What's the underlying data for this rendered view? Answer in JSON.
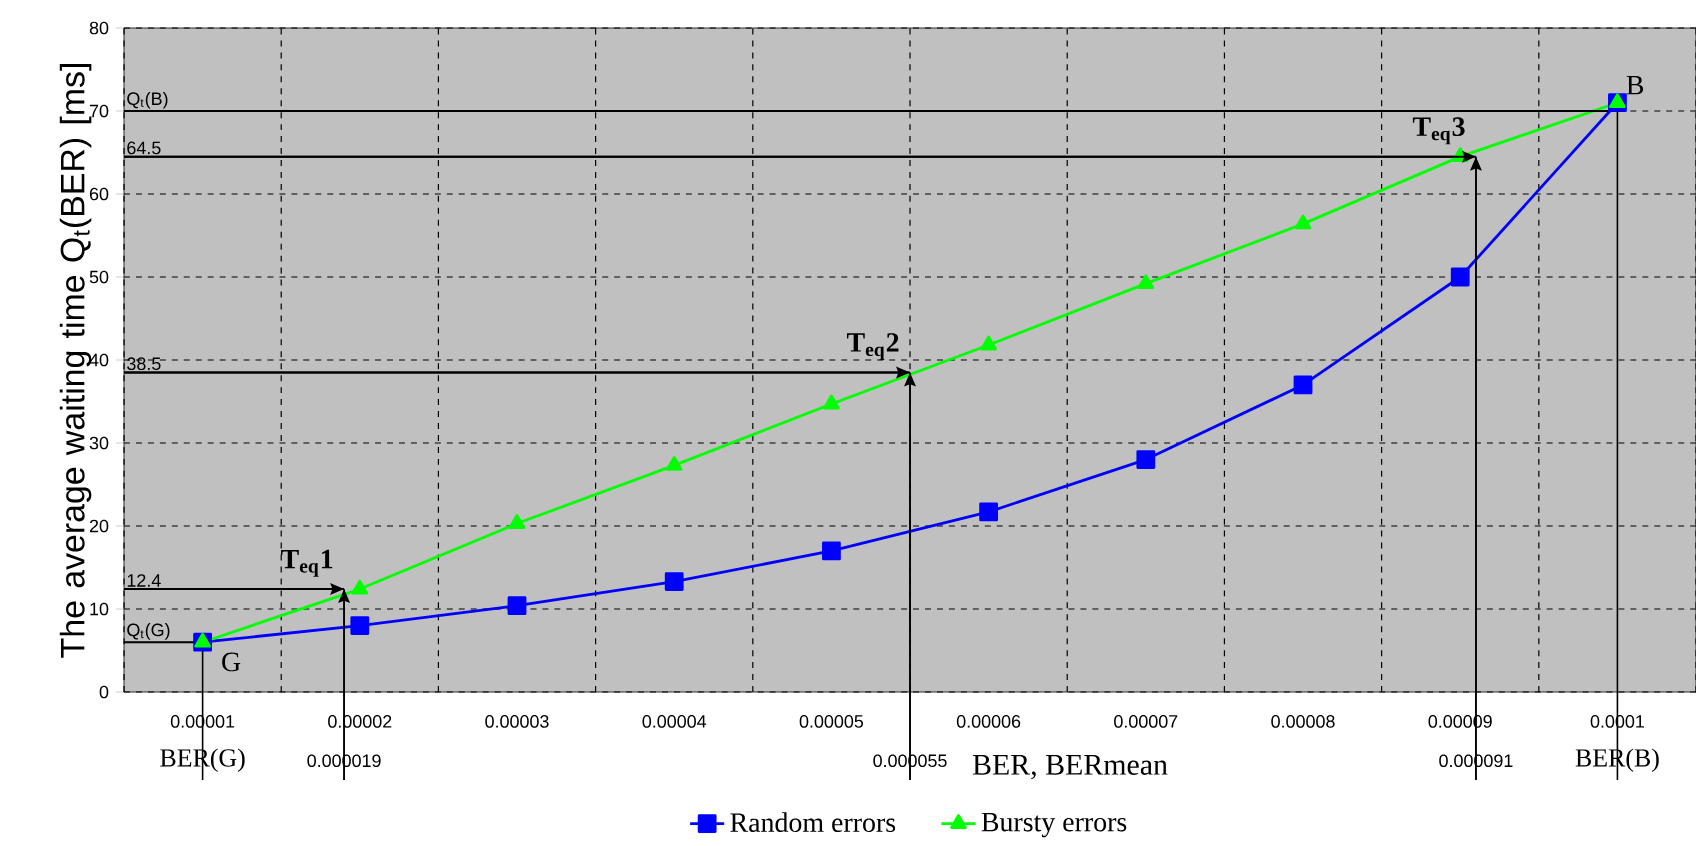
{
  "chart_data": {
    "type": "line",
    "xlabel": "BER, BERmean",
    "ylabel": "The average waiting time Q$_{t}$(BER) [ms]",
    "x": [
      1e-05,
      2e-05,
      3e-05,
      4e-05,
      5e-05,
      6e-05,
      7e-05,
      8e-05,
      9e-05,
      0.0001
    ],
    "series": [
      {
        "name": "Random errors",
        "color": "#0000ff",
        "marker": "square",
        "values": [
          6,
          8,
          10.4,
          13.3,
          17,
          21.7,
          28,
          37,
          50,
          71
        ]
      },
      {
        "name": "Bursty errors",
        "color": "#00ff00",
        "marker": "triangle",
        "values": [
          6,
          12.4,
          20.3,
          27.3,
          34.7,
          41.8,
          49.2,
          56.4,
          64.5,
          71
        ]
      }
    ],
    "xlim": [
      5e-06,
      0.000105
    ],
    "xticks": [
      {
        "value": 1e-05,
        "label": "0.00001"
      },
      {
        "value": 2e-05,
        "label": "0.00002"
      },
      {
        "value": 3e-05,
        "label": "0.00003"
      },
      {
        "value": 4e-05,
        "label": "0.00004"
      },
      {
        "value": 5e-05,
        "label": "0.00005"
      },
      {
        "value": 6e-05,
        "label": "0.00006"
      },
      {
        "value": 7e-05,
        "label": "0.00007"
      },
      {
        "value": 8e-05,
        "label": "0.00008"
      },
      {
        "value": 9e-05,
        "label": "0.00009"
      },
      {
        "value": 0.0001,
        "label": "0.0001"
      }
    ],
    "ylim": [
      0,
      80
    ],
    "yticks": [
      0,
      10,
      20,
      30,
      40,
      50,
      60,
      70,
      80
    ],
    "grid": true,
    "legend": "bottom",
    "ref_lines": [
      {
        "axis": "y",
        "value": 6,
        "label": "Q$_{t}$(G)"
      },
      {
        "axis": "y",
        "value": 12.4,
        "label": "12.4"
      },
      {
        "axis": "y",
        "value": 38.5,
        "label": "38.5"
      },
      {
        "axis": "y",
        "value": 64.5,
        "label": "64.5"
      },
      {
        "axis": "y",
        "value": 70,
        "label": "Q$_{t}$(B)"
      },
      {
        "axis": "x",
        "value": 1e-05,
        "label": "BER(G)"
      },
      {
        "axis": "x",
        "value": 1.9e-05,
        "label": "0.000019"
      },
      {
        "axis": "x",
        "value": 5.5e-05,
        "label": "0.000055"
      },
      {
        "axis": "x",
        "value": 9.1e-05,
        "label": "0.000091"
      },
      {
        "axis": "x",
        "value": 0.0001,
        "label": "BER(B)"
      }
    ],
    "annotations": [
      {
        "text": "G",
        "x": 1e-05,
        "y": 6
      },
      {
        "text": "T$_{eq}$1",
        "x": 1.9e-05,
        "y": 12.4
      },
      {
        "text": "T$_{eq}$2",
        "x": 5.5e-05,
        "y": 38.5
      },
      {
        "text": "T$_{eq}$3",
        "x": 9.1e-05,
        "y": 64.5
      },
      {
        "text": "B",
        "x": 0.0001,
        "y": 71
      }
    ]
  }
}
